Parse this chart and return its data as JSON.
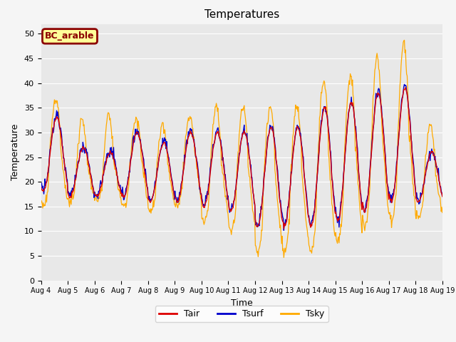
{
  "title": "Temperatures",
  "xlabel": "Time",
  "ylabel": "Temperature",
  "ylim": [
    0,
    52
  ],
  "yticks": [
    0,
    5,
    10,
    15,
    20,
    25,
    30,
    35,
    40,
    45,
    50
  ],
  "legend_entries": [
    "Tair",
    "Tsurf",
    "Tsky"
  ],
  "legend_colors": [
    "#dd0000",
    "#0000cc",
    "#ffaa00"
  ],
  "box_label": "BC_arable",
  "box_facecolor": "#ffff99",
  "box_edgecolor": "#8b0000",
  "plot_bg": "#e8e8e8",
  "fig_bg": "#f5f5f5",
  "n_days": 15,
  "start_day": 4,
  "tair_min": [
    18,
    17,
    17,
    17,
    16,
    16,
    15,
    14,
    11,
    11,
    11,
    12,
    14,
    16,
    16
  ],
  "tair_max": [
    33,
    27,
    26,
    30,
    28,
    30,
    30,
    30,
    31,
    31,
    35,
    36,
    38,
    39,
    26
  ],
  "tsky_day_extra": [
    4,
    6,
    8,
    3,
    4,
    4,
    6,
    6,
    5,
    5,
    6,
    6,
    8,
    10,
    6
  ],
  "tsky_night_drop": [
    3,
    1,
    1,
    2,
    2,
    1,
    3,
    4,
    5,
    5,
    5,
    4,
    3,
    4,
    3
  ]
}
